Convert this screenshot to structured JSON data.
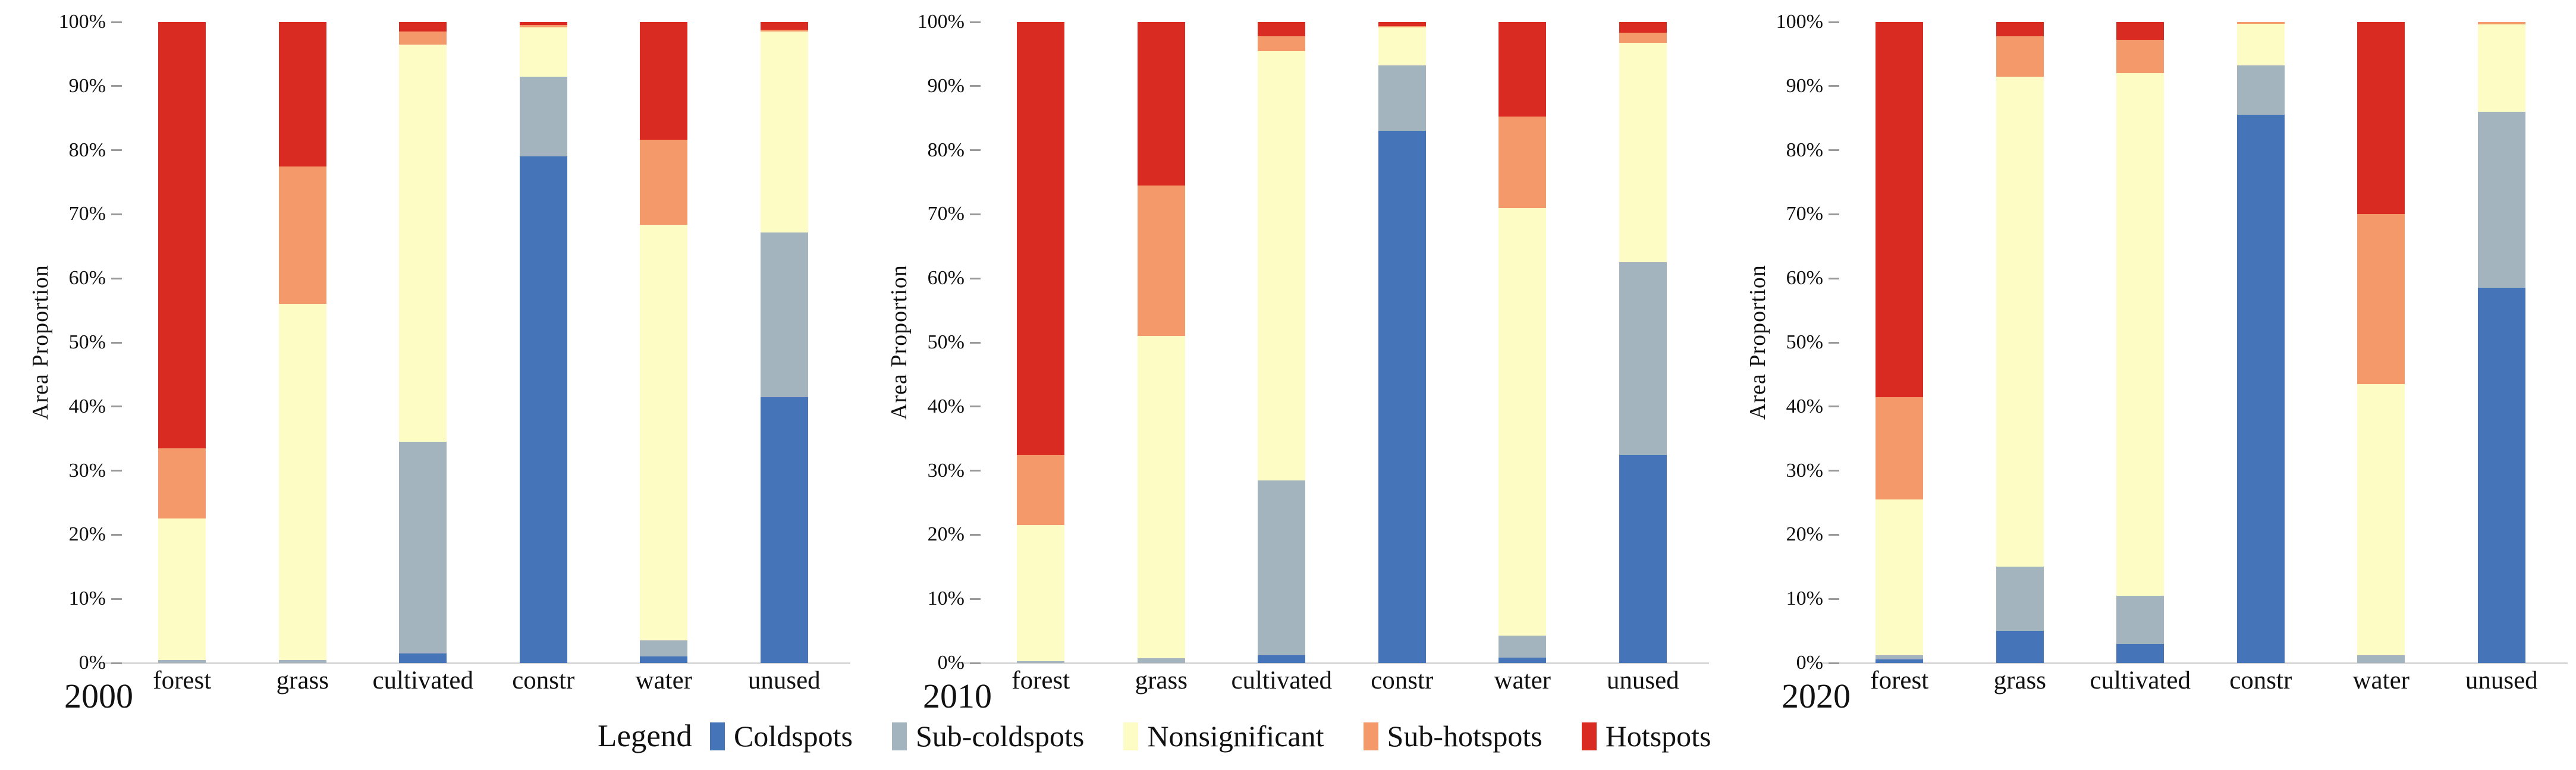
{
  "figure": {
    "ylabel": "Area Proportion",
    "yticks": [
      "0%",
      "10%",
      "20%",
      "30%",
      "40%",
      "50%",
      "60%",
      "70%",
      "80%",
      "90%",
      "100%"
    ],
    "legend": {
      "title": "Legend",
      "entries": [
        {
          "label": "Coldspots",
          "color": "#4674b8"
        },
        {
          "label": "Sub-coldspots",
          "color": "#a4b4bf"
        },
        {
          "label": "Nonsignificant",
          "color": "#fdfcc4"
        },
        {
          "label": "Sub-hotspots",
          "color": "#f49a6a"
        },
        {
          "label": "Hotspots",
          "color": "#d92b22"
        }
      ]
    },
    "background_color": "#ffffff",
    "axis_line_color": "#d8d8d8",
    "text_color": "#111111"
  },
  "chart_data": [
    {
      "type": "bar",
      "stacked": true,
      "title": "2000",
      "xlabel": "",
      "ylabel": "Area Proportion",
      "ylim": [
        0,
        100
      ],
      "grid": false,
      "legend_position": "bottom",
      "categories": [
        "forest",
        "grass",
        "cultivated",
        "constr",
        "water",
        "unused"
      ],
      "series": [
        {
          "name": "Coldspots",
          "values": [
            0,
            0,
            1.5,
            79,
            1,
            41.5
          ]
        },
        {
          "name": "Sub-coldspots",
          "values": [
            0.5,
            0.5,
            33,
            12.5,
            2.5,
            25.7
          ]
        },
        {
          "name": "Nonsignificant",
          "values": [
            22,
            55.5,
            62,
            7.7,
            64.9,
            31.3
          ]
        },
        {
          "name": "Sub-hotspots",
          "values": [
            11,
            21.5,
            2,
            0.3,
            13.2,
            0.3
          ]
        },
        {
          "name": "Hotspots",
          "values": [
            66.5,
            22.5,
            1.5,
            0.5,
            18.4,
            1.2
          ]
        }
      ]
    },
    {
      "type": "bar",
      "stacked": true,
      "title": "2010",
      "xlabel": "",
      "ylabel": "Area Proportion",
      "ylim": [
        0,
        100
      ],
      "grid": false,
      "legend_position": "bottom",
      "categories": [
        "forest",
        "grass",
        "cultivated",
        "constr",
        "water",
        "unused"
      ],
      "series": [
        {
          "name": "Coldspots",
          "values": [
            0,
            0,
            1.2,
            83,
            0.8,
            32.5
          ]
        },
        {
          "name": "Sub-coldspots",
          "values": [
            0.3,
            0.7,
            27.3,
            10.2,
            3.5,
            30
          ]
        },
        {
          "name": "Nonsignificant",
          "values": [
            21.2,
            50.3,
            67,
            6,
            66.7,
            34.3
          ]
        },
        {
          "name": "Sub-hotspots",
          "values": [
            11,
            23.5,
            2.3,
            0.2,
            14.3,
            1.5
          ]
        },
        {
          "name": "Hotspots",
          "values": [
            67.5,
            25.5,
            2.2,
            0.6,
            14.7,
            1.7
          ]
        }
      ]
    },
    {
      "type": "bar",
      "stacked": true,
      "title": "2020",
      "xlabel": "",
      "ylabel": "Area Proportion",
      "ylim": [
        0,
        100
      ],
      "grid": false,
      "legend_position": "bottom",
      "categories": [
        "forest",
        "grass",
        "cultivated",
        "constr",
        "water",
        "unused"
      ],
      "series": [
        {
          "name": "Coldspots",
          "values": [
            0.6,
            5,
            3,
            85.5,
            0,
            58.5
          ]
        },
        {
          "name": "Sub-coldspots",
          "values": [
            0.6,
            10,
            7.5,
            7.7,
            1.2,
            27.5
          ]
        },
        {
          "name": "Nonsignificant",
          "values": [
            24.3,
            76.5,
            81.5,
            6.5,
            42.3,
            13.6
          ]
        },
        {
          "name": "Sub-hotspots",
          "values": [
            16,
            6.3,
            5.2,
            0.3,
            26.5,
            0.4
          ]
        },
        {
          "name": "Hotspots",
          "values": [
            58.5,
            2.2,
            2.8,
            0,
            30,
            0
          ]
        }
      ]
    }
  ]
}
